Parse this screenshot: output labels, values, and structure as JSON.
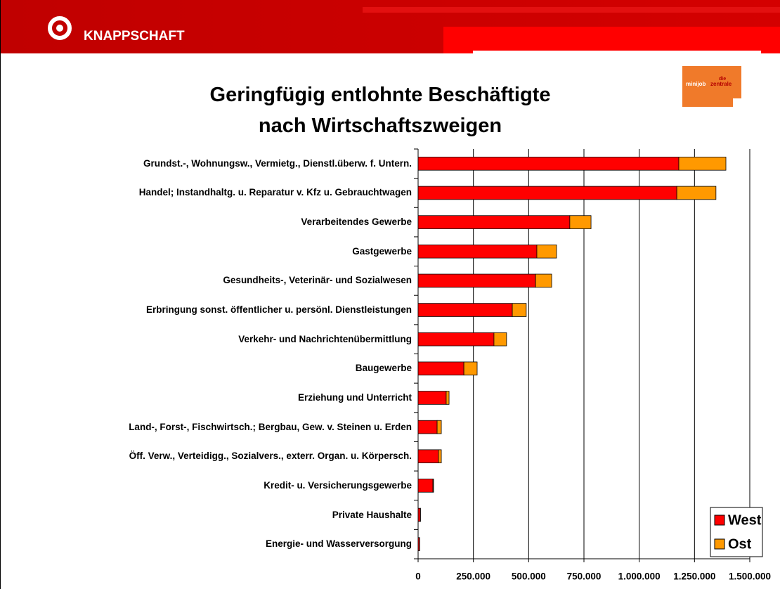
{
  "header": {
    "brand": "KNAPPSCHAFT",
    "logo": [
      "die",
      "minijob",
      "zentrale"
    ]
  },
  "chart_data": {
    "type": "stacked-barh",
    "title": "Geringfügig entlohnte Beschäftigte\nnach Wirtschaftszweigen",
    "categories": [
      "Grundst.-, Wohnungsw., Vermietg., Dienstl.überw. f. Untern.",
      "Handel; Instandhaltg. u. Reparatur v. Kfz u. Gebrauchtwagen",
      "Verarbeitendes Gewerbe",
      "Gastgewerbe",
      "Gesundheits-, Veterinär- und Sozialwesen",
      "Erbringung sonst. öffentlicher u. persönl. Dienstleistungen",
      "Verkehr- und Nachrichtenübermittlung",
      "Baugewerbe",
      "Erziehung und Unterricht",
      "Land-, Forst-, Fischwirtsch.; Bergbau, Gew. v. Steinen u. Erden",
      "Öff. Verw., Verteidigg., Sozialvers., exterr. Organ. u. Körpersch.",
      "Kredit- u. Versicherungsgewerbe",
      "Private Haushalte",
      "Energie- und Wasserversorgung"
    ],
    "series": [
      {
        "name": "West",
        "color": "#ff0000",
        "values": [
          1179000,
          1170000,
          686000,
          537000,
          531000,
          426000,
          343000,
          207000,
          127000,
          86000,
          92000,
          67000,
          10000,
          6000
        ]
      },
      {
        "name": "Ost",
        "color": "#ff9900",
        "values": [
          213000,
          177000,
          96000,
          89000,
          73000,
          63000,
          57000,
          60000,
          13000,
          19000,
          13000,
          3000,
          1000,
          1000
        ]
      }
    ],
    "xlim": [
      0,
      1500000
    ],
    "xticks": [
      0,
      {
        "value": 250000,
        "label": "250.000"
      },
      {
        "value": 500000,
        "label": "500.000"
      },
      {
        "value": 750000,
        "label": "750.000"
      },
      {
        "value": 1000000,
        "label": "1.000.000"
      },
      {
        "value": 1250000,
        "label": "1.250.000"
      },
      {
        "value": 1500000,
        "label": "1.500.000"
      }
    ],
    "grid": true,
    "legend": "bottom-right"
  }
}
